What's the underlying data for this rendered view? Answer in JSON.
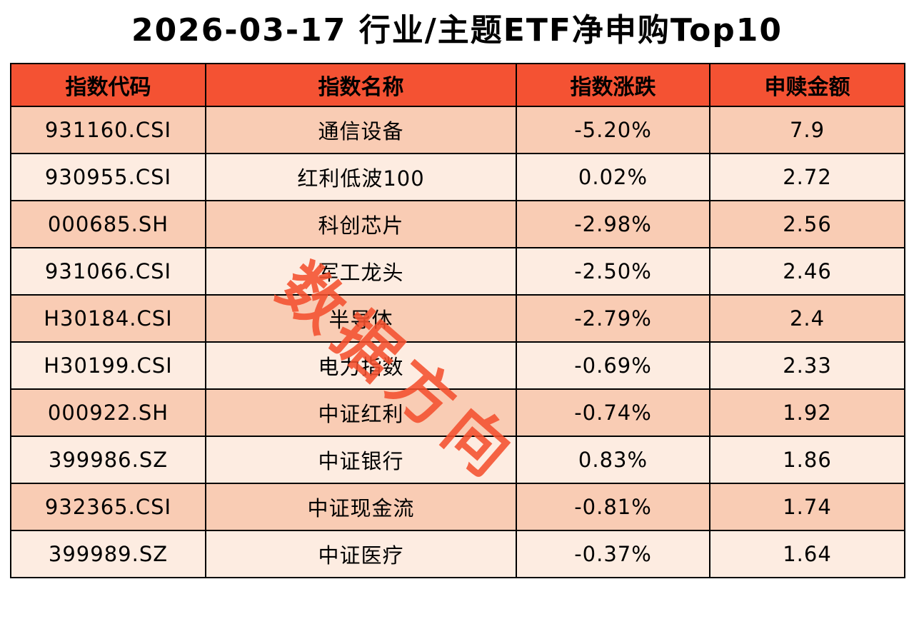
{
  "title": "2026-03-17 行业/主题ETF净申购Top10",
  "watermark": {
    "text": "数据方向"
  },
  "colors": {
    "header_bg": "#f45233",
    "row_dark": "#f9ccb4",
    "row_light": "#fdece1",
    "watermark": "#f4512f",
    "border": "#000000"
  },
  "chart_data": {
    "type": "table",
    "title": "2026-03-17 行业/主题ETF净申购Top10",
    "columns": [
      "指数代码",
      "指数名称",
      "指数涨跌",
      "申赎金额"
    ],
    "rows": [
      {
        "code": "931160.CSI",
        "name": "通信设备",
        "change": "-5.20%",
        "amount": "7.9"
      },
      {
        "code": "930955.CSI",
        "name": "红利低波100",
        "change": "0.02%",
        "amount": "2.72"
      },
      {
        "code": "000685.SH",
        "name": "科创芯片",
        "change": "-2.98%",
        "amount": "2.56"
      },
      {
        "code": "931066.CSI",
        "name": "军工龙头",
        "change": "-2.50%",
        "amount": "2.46"
      },
      {
        "code": "H30184.CSI",
        "name": "半导体",
        "change": "-2.79%",
        "amount": "2.4"
      },
      {
        "code": "H30199.CSI",
        "name": "电力指数",
        "change": "-0.69%",
        "amount": "2.33"
      },
      {
        "code": "000922.SH",
        "name": "中证红利",
        "change": "-0.74%",
        "amount": "1.92"
      },
      {
        "code": "399986.SZ",
        "name": "中证银行",
        "change": "0.83%",
        "amount": "1.86"
      },
      {
        "code": "932365.CSI",
        "name": "中证现金流",
        "change": "-0.81%",
        "amount": "1.74"
      },
      {
        "code": "399989.SZ",
        "name": "中证医疗",
        "change": "-0.37%",
        "amount": "1.64"
      }
    ]
  }
}
